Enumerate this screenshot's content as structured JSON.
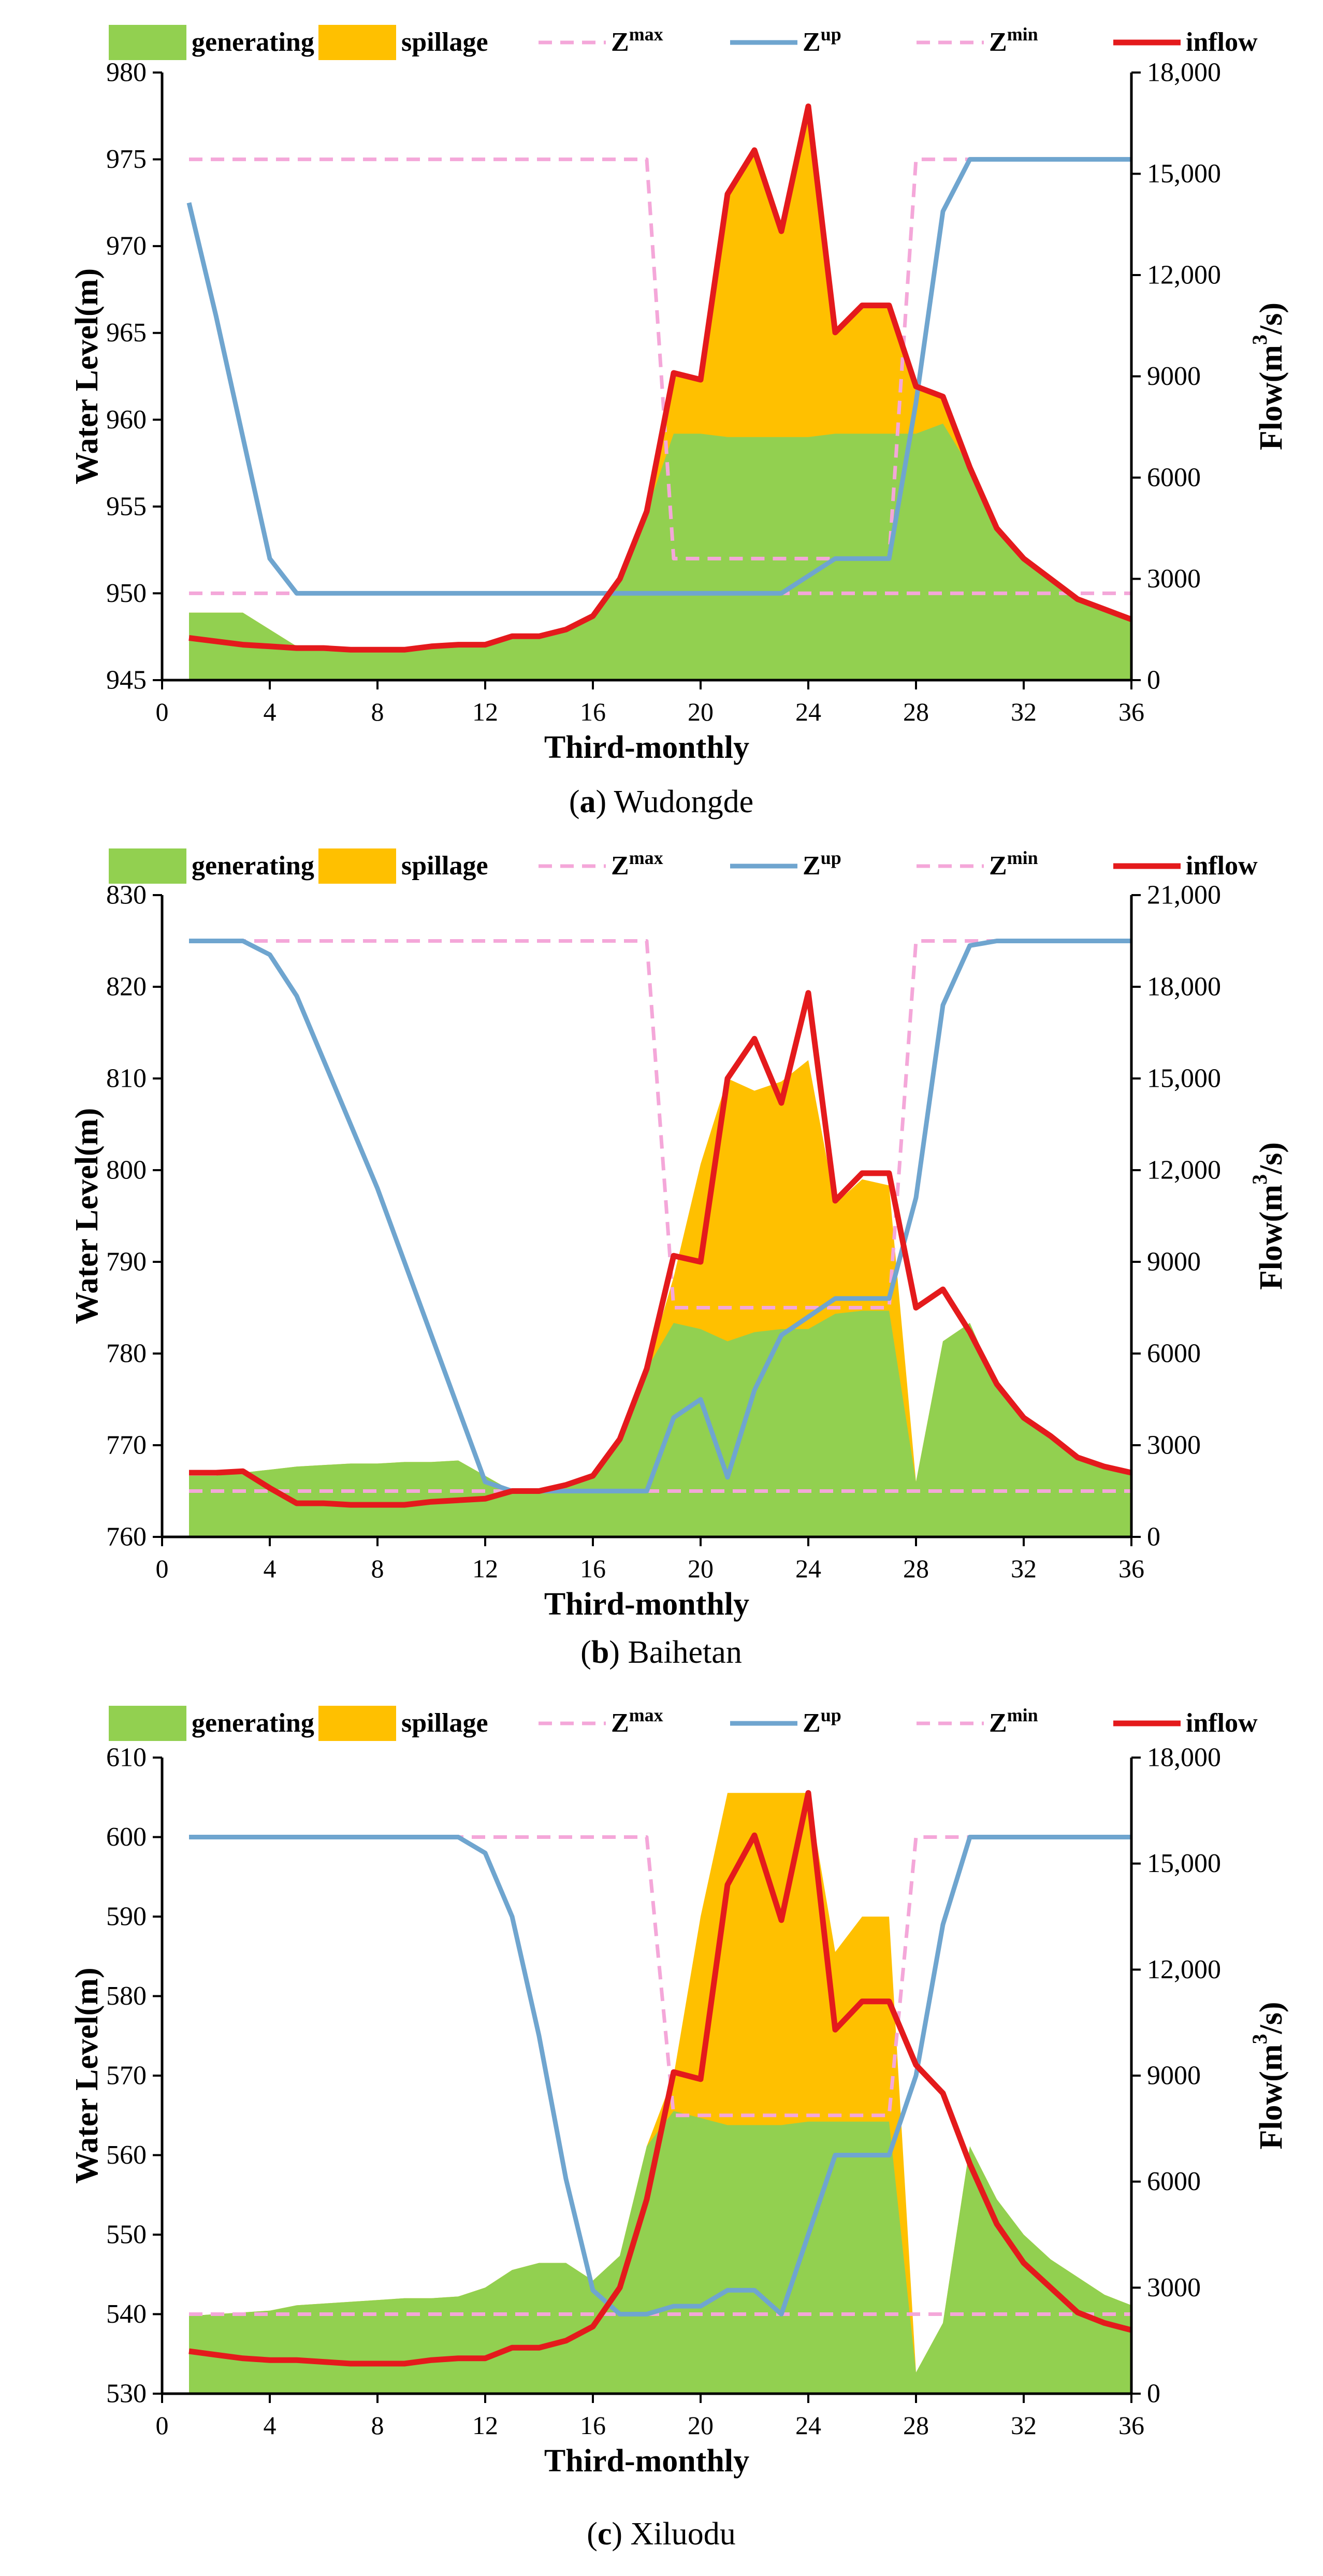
{
  "colors": {
    "generating": "#92d050",
    "spillage": "#ffc000",
    "zmax": "#f4a7d9",
    "zup": "#6fa5cf",
    "zmin": "#f4a7d9",
    "inflow": "#e41a1c"
  },
  "legend": [
    {
      "key": "generating",
      "label": "generating",
      "kind": "patch"
    },
    {
      "key": "spillage",
      "label": "spillage",
      "kind": "patch"
    },
    {
      "key": "zmax",
      "label": "Z",
      "sup": "max",
      "kind": "dash"
    },
    {
      "key": "zup",
      "label": "Z",
      "sup": "up",
      "kind": "line"
    },
    {
      "key": "zmin",
      "label": "Z",
      "sup": "min",
      "kind": "dash"
    },
    {
      "key": "inflow",
      "label": "inflow",
      "kind": "line"
    }
  ],
  "chart_data": [
    {
      "type": "area",
      "caption_tag": "(a)",
      "caption_name": "Wudongde",
      "xlabel": "Third-monthly",
      "ylabel": "Water Level(m)",
      "y2label_prefix": "Flow(m",
      "y2label_sup": "3",
      "y2label_suffix": "/s)",
      "xlim": [
        0,
        36
      ],
      "xticks": [
        0,
        4,
        8,
        12,
        16,
        20,
        24,
        28,
        32,
        36
      ],
      "ylim": [
        945,
        980
      ],
      "yticks": [
        "945",
        "950",
        "955",
        "960",
        "965",
        "970",
        "975",
        "980"
      ],
      "y2lim": [
        0,
        18000
      ],
      "y2ticks": [
        "0",
        "3000",
        "6000",
        "9000",
        "12,000",
        "15,000",
        "18,000"
      ],
      "x": [
        1,
        2,
        3,
        4,
        5,
        6,
        7,
        8,
        9,
        10,
        11,
        12,
        13,
        14,
        15,
        16,
        17,
        18,
        19,
        20,
        21,
        22,
        23,
        24,
        25,
        26,
        27,
        28,
        29,
        30,
        31,
        32,
        33,
        34,
        35,
        36
      ],
      "series": [
        {
          "name": "generating",
          "axis": "y2",
          "values": [
            2000,
            2000,
            2000,
            1500,
            1000,
            950,
            950,
            900,
            900,
            1000,
            1050,
            1050,
            1300,
            1300,
            1500,
            1900,
            3000,
            5000,
            7300,
            7300,
            7200,
            7200,
            7200,
            7200,
            7300,
            7300,
            7300,
            7300,
            7600,
            6300,
            4500,
            3600,
            3000,
            2400,
            2100,
            1800
          ]
        },
        {
          "name": "spillage",
          "axis": "y2",
          "values": [
            2000,
            2000,
            2000,
            1500,
            1000,
            950,
            950,
            900,
            900,
            1000,
            1050,
            1050,
            1300,
            1300,
            1500,
            1900,
            3000,
            5000,
            9100,
            8900,
            14400,
            15700,
            13300,
            17000,
            10300,
            11100,
            11100,
            8700,
            8400,
            6300,
            4500,
            3600,
            3000,
            2400,
            2100,
            1800
          ]
        },
        {
          "name": "zmax",
          "axis": "y",
          "values": [
            975,
            975,
            975,
            975,
            975,
            975,
            975,
            975,
            975,
            975,
            975,
            975,
            975,
            975,
            975,
            975,
            975,
            975,
            952,
            952,
            952,
            952,
            952,
            952,
            952,
            952,
            952,
            975,
            975,
            975,
            975,
            975,
            975,
            975,
            975,
            975
          ]
        },
        {
          "name": "zup",
          "axis": "y",
          "values": [
            972.5,
            966,
            959,
            952,
            950,
            950,
            950,
            950,
            950,
            950,
            950,
            950,
            950,
            950,
            950,
            950,
            950,
            950,
            950,
            950,
            950,
            950,
            950,
            951,
            952,
            952,
            952,
            961,
            972,
            975,
            975,
            975,
            975,
            975,
            975,
            975
          ]
        },
        {
          "name": "zmin",
          "axis": "y",
          "values": [
            950,
            950,
            950,
            950,
            950,
            950,
            950,
            950,
            950,
            950,
            950,
            950,
            950,
            950,
            950,
            950,
            950,
            950,
            950,
            950,
            950,
            950,
            950,
            950,
            950,
            950,
            950,
            950,
            950,
            950,
            950,
            950,
            950,
            950,
            950,
            950
          ]
        },
        {
          "name": "inflow",
          "axis": "y2",
          "values": [
            1250,
            1150,
            1050,
            1000,
            950,
            950,
            900,
            900,
            900,
            1000,
            1050,
            1050,
            1300,
            1300,
            1500,
            1900,
            3000,
            5000,
            9100,
            8900,
            14400,
            15700,
            13300,
            17000,
            10300,
            11100,
            11100,
            8700,
            8400,
            6300,
            4500,
            3600,
            3000,
            2400,
            2100,
            1800
          ]
        }
      ]
    },
    {
      "type": "area",
      "caption_tag": "(b)",
      "caption_name": "Baihetan",
      "xlabel": "Third-monthly",
      "ylabel": "Water Level(m)",
      "y2label_prefix": "Flow(m",
      "y2label_sup": "3",
      "y2label_suffix": "/s)",
      "xlim": [
        0,
        36
      ],
      "xticks": [
        0,
        4,
        8,
        12,
        16,
        20,
        24,
        28,
        32,
        36
      ],
      "ylim": [
        760,
        830
      ],
      "yticks": [
        "760",
        "770",
        "780",
        "790",
        "800",
        "810",
        "820",
        "830"
      ],
      "y2lim": [
        0,
        21000
      ],
      "y2ticks": [
        "0",
        "3000",
        "6000",
        "9000",
        "12,000",
        "15,000",
        "18,000",
        "21,000"
      ],
      "x": [
        1,
        2,
        3,
        4,
        5,
        6,
        7,
        8,
        9,
        10,
        11,
        12,
        13,
        14,
        15,
        16,
        17,
        18,
        19,
        20,
        21,
        22,
        23,
        24,
        25,
        26,
        27,
        28,
        29,
        30,
        31,
        32,
        33,
        34,
        35,
        36
      ],
      "series": [
        {
          "name": "generating",
          "axis": "y2",
          "values": [
            2000,
            2000,
            2100,
            2200,
            2300,
            2350,
            2400,
            2400,
            2450,
            2450,
            2500,
            2000,
            1500,
            1500,
            1700,
            2000,
            3200,
            5500,
            7000,
            6800,
            6400,
            6700,
            6800,
            6800,
            7300,
            7400,
            7400,
            1800,
            6400,
            7000,
            5000,
            3800,
            3200,
            2600,
            2300,
            2000
          ]
        },
        {
          "name": "spillage",
          "axis": "y2",
          "values": [
            2000,
            2000,
            2100,
            2200,
            2300,
            2350,
            2400,
            2400,
            2450,
            2450,
            2500,
            2000,
            1500,
            1500,
            1700,
            2000,
            3200,
            5500,
            8500,
            12200,
            15000,
            14600,
            14900,
            15600,
            10900,
            11700,
            11500,
            1800,
            6400,
            7000,
            5000,
            3800,
            3200,
            2600,
            2300,
            2000
          ]
        },
        {
          "name": "zmax",
          "axis": "y",
          "values": [
            825,
            825,
            825,
            825,
            825,
            825,
            825,
            825,
            825,
            825,
            825,
            825,
            825,
            825,
            825,
            825,
            825,
            825,
            785,
            785,
            785,
            785,
            785,
            785,
            785,
            785,
            785,
            825,
            825,
            825,
            825,
            825,
            825,
            825,
            825,
            825
          ]
        },
        {
          "name": "zup",
          "axis": "y",
          "values": [
            825,
            825,
            825,
            823.5,
            819,
            812,
            805,
            798,
            790,
            782,
            774,
            766,
            765,
            765,
            765,
            765,
            765,
            765,
            773,
            775,
            766.5,
            776,
            782,
            784,
            786,
            786,
            786,
            797,
            818,
            824.5,
            825,
            825,
            825,
            825,
            825,
            825
          ]
        },
        {
          "name": "zmin",
          "axis": "y",
          "values": [
            765,
            765,
            765,
            765,
            765,
            765,
            765,
            765,
            765,
            765,
            765,
            765,
            765,
            765,
            765,
            765,
            765,
            765,
            765,
            765,
            765,
            765,
            765,
            765,
            765,
            765,
            765,
            765,
            765,
            765,
            765,
            765,
            765,
            765,
            765,
            765
          ]
        },
        {
          "name": "inflow",
          "axis": "y2",
          "values": [
            2100,
            2100,
            2150,
            1600,
            1100,
            1100,
            1050,
            1050,
            1050,
            1150,
            1200,
            1250,
            1500,
            1500,
            1700,
            2000,
            3200,
            5500,
            9200,
            9000,
            15000,
            16300,
            14200,
            17800,
            11000,
            11900,
            11900,
            7500,
            8100,
            6700,
            5000,
            3900,
            3300,
            2600,
            2300,
            2100
          ]
        }
      ]
    },
    {
      "type": "area",
      "caption_tag": "(c)",
      "caption_name": "Xiluodu",
      "xlabel": "Third-monthly",
      "ylabel": "Water Level(m)",
      "y2label_prefix": "Flow(m",
      "y2label_sup": "3",
      "y2label_suffix": "/s)",
      "xlim": [
        0,
        36
      ],
      "xticks": [
        0,
        4,
        8,
        12,
        16,
        20,
        24,
        28,
        32,
        36
      ],
      "ylim": [
        530,
        610
      ],
      "yticks": [
        "530",
        "540",
        "550",
        "560",
        "570",
        "580",
        "590",
        "600",
        "610"
      ],
      "y2lim": [
        0,
        18000
      ],
      "y2ticks": [
        "0",
        "3000",
        "6000",
        "9000",
        "12,000",
        "15,000",
        "18,000"
      ],
      "x": [
        1,
        2,
        3,
        4,
        5,
        6,
        7,
        8,
        9,
        10,
        11,
        12,
        13,
        14,
        15,
        16,
        17,
        18,
        19,
        20,
        21,
        22,
        23,
        24,
        25,
        26,
        27,
        28,
        29,
        30,
        31,
        32,
        33,
        34,
        35,
        36
      ],
      "series": [
        {
          "name": "generating",
          "axis": "y2",
          "values": [
            2200,
            2250,
            2300,
            2350,
            2500,
            2550,
            2600,
            2650,
            2700,
            2700,
            2750,
            3000,
            3500,
            3700,
            3700,
            3200,
            3900,
            7000,
            8000,
            7800,
            7600,
            7600,
            7600,
            7700,
            7700,
            7700,
            7700,
            600,
            2000,
            7000,
            5500,
            4500,
            3800,
            3300,
            2800,
            2500
          ]
        },
        {
          "name": "spillage",
          "axis": "y2",
          "values": [
            2200,
            2250,
            2300,
            2350,
            2500,
            2550,
            2600,
            2650,
            2700,
            2700,
            2750,
            3000,
            3500,
            3700,
            3700,
            3200,
            3900,
            7000,
            9000,
            13500,
            17000,
            17000,
            17000,
            17000,
            12500,
            13500,
            13500,
            600,
            2000,
            7000,
            5500,
            4500,
            3800,
            3300,
            2800,
            2500
          ]
        },
        {
          "name": "zmax",
          "axis": "y",
          "values": [
            600,
            600,
            600,
            600,
            600,
            600,
            600,
            600,
            600,
            600,
            600,
            600,
            600,
            600,
            600,
            600,
            600,
            600,
            565,
            565,
            565,
            565,
            565,
            565,
            565,
            565,
            565,
            600,
            600,
            600,
            600,
            600,
            600,
            600,
            600,
            600
          ]
        },
        {
          "name": "zup",
          "axis": "y",
          "values": [
            600,
            600,
            600,
            600,
            600,
            600,
            600,
            600,
            600,
            600,
            600,
            598,
            590,
            575,
            557,
            543,
            540,
            540,
            541,
            541,
            543,
            543,
            540,
            550,
            560,
            560,
            560,
            570,
            589,
            600,
            600,
            600,
            600,
            600,
            600,
            600
          ]
        },
        {
          "name": "zmin",
          "axis": "y",
          "values": [
            540,
            540,
            540,
            540,
            540,
            540,
            540,
            540,
            540,
            540,
            540,
            540,
            540,
            540,
            540,
            540,
            540,
            540,
            540,
            540,
            540,
            540,
            540,
            540,
            540,
            540,
            540,
            540,
            540,
            540,
            540,
            540,
            540,
            540,
            540,
            540
          ]
        },
        {
          "name": "inflow",
          "axis": "y2",
          "values": [
            1200,
            1100,
            1000,
            950,
            950,
            900,
            850,
            850,
            850,
            950,
            1000,
            1000,
            1300,
            1300,
            1500,
            1900,
            3000,
            5500,
            9100,
            8900,
            14400,
            15800,
            13400,
            17000,
            10300,
            11100,
            11100,
            9300,
            8500,
            6500,
            4800,
            3700,
            3000,
            2300,
            2000,
            1800
          ]
        }
      ]
    }
  ]
}
